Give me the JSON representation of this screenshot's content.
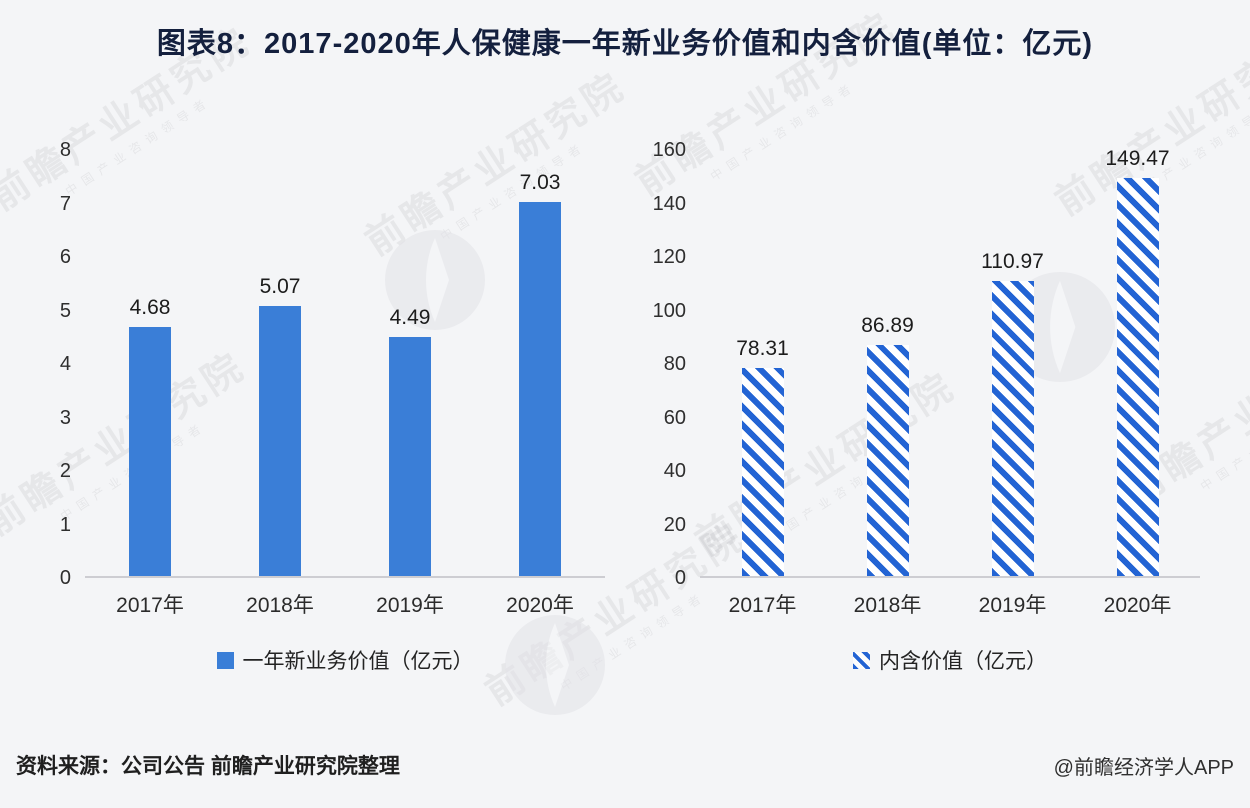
{
  "title": "图表8：2017-2020年人保健康一年新业务价值和内含价值(单位：亿元)",
  "chart_data": [
    {
      "type": "bar",
      "name": "one-year-new-business-value",
      "legend": "一年新业务价值（亿元）",
      "bar_style": "solid",
      "categories": [
        "2017年",
        "2018年",
        "2019年",
        "2020年"
      ],
      "values": [
        4.68,
        5.07,
        4.49,
        7.03
      ],
      "ylim": [
        0,
        8
      ],
      "y_ticks": [
        0,
        1,
        2,
        3,
        4,
        5,
        6,
        7,
        8
      ],
      "grid": false,
      "legend_position": "bottom",
      "value_labels": true
    },
    {
      "type": "bar",
      "name": "embedded-value",
      "legend": "内含价值（亿元）",
      "bar_style": "hatched",
      "categories": [
        "2017年",
        "2018年",
        "2019年",
        "2020年"
      ],
      "values": [
        78.31,
        86.89,
        110.97,
        149.47
      ],
      "ylim": [
        0,
        160
      ],
      "y_ticks": [
        0,
        20,
        40,
        60,
        80,
        100,
        120,
        140,
        160
      ],
      "grid": false,
      "legend_position": "bottom",
      "value_labels": true
    }
  ],
  "footer": {
    "source": "资料来源：公司公告 前瞻产业研究院整理",
    "credit": "@前瞻经济学人APP"
  },
  "watermark": {
    "text": "前瞻产业研究院",
    "subtext": "中国产业咨询领导者"
  },
  "colors": {
    "bar_solid": "#3a7ed7",
    "bar_hatch": "#2364d4",
    "background": "#f4f5f7",
    "title_text": "#14203e",
    "axis_line": "#cdcdd2",
    "tick_text": "#2e2e2e"
  }
}
